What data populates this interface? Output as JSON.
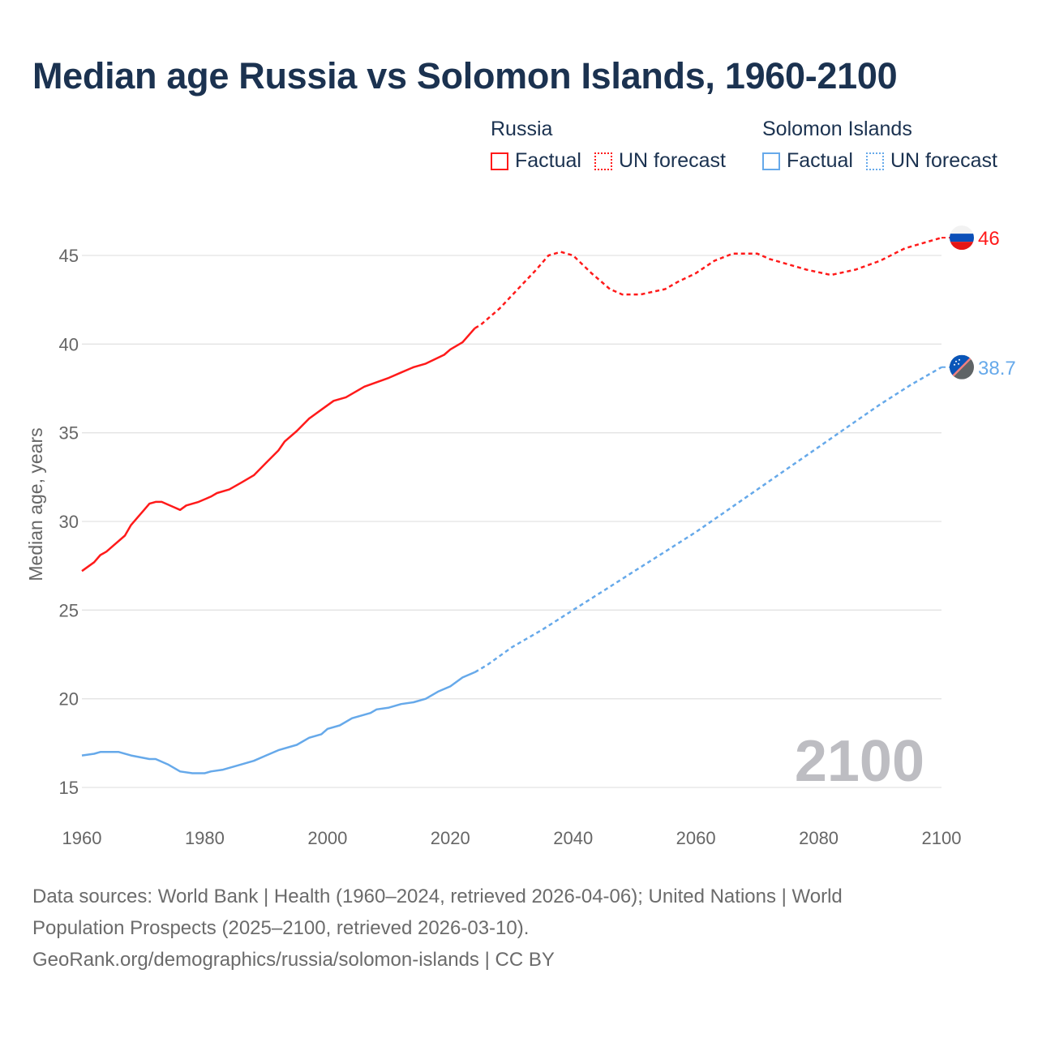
{
  "title": "Median age Russia vs Solomon Islands, 1960-2100",
  "legend": {
    "groups": [
      {
        "name": "Russia",
        "color": "#ff1a1a",
        "factual_label": "Factual",
        "forecast_label": "UN forecast"
      },
      {
        "name": "Solomon Islands",
        "color": "#66a9ea",
        "factual_label": "Factual",
        "forecast_label": "UN forecast"
      }
    ]
  },
  "year_watermark": "2100",
  "footer": {
    "line1": "Data sources: World Bank | Health (1960–2024, retrieved 2026-04-06); United Nations | World",
    "line2": "Population Prospects (2025–2100, retrieved 2026-03-10).",
    "line3": "GeoRank.org/demographics/russia/solomon-islands | CC BY"
  },
  "chart_data": {
    "type": "line",
    "title": "Median age Russia vs Solomon Islands, 1960-2100",
    "xlabel": "",
    "ylabel": "Median age, years",
    "xlim": [
      1960,
      2100
    ],
    "ylim": [
      15,
      46
    ],
    "xticks": [
      1960,
      1980,
      2000,
      2020,
      2040,
      2060,
      2080,
      2100
    ],
    "yticks": [
      15,
      20,
      25,
      30,
      35,
      40,
      45
    ],
    "grid": true,
    "legend_position": "top-right",
    "series": [
      {
        "name": "Russia",
        "color": "#ff1a1a",
        "end_label": "46",
        "flag": "russia",
        "factual": [
          [
            1960,
            27.2
          ],
          [
            1962,
            27.7
          ],
          [
            1963,
            28.1
          ],
          [
            1964,
            28.3
          ],
          [
            1965,
            28.6
          ],
          [
            1967,
            29.2
          ],
          [
            1968,
            29.8
          ],
          [
            1970,
            30.6
          ],
          [
            1971,
            31.0
          ],
          [
            1972,
            31.1
          ],
          [
            1973,
            31.1
          ],
          [
            1975,
            30.8
          ],
          [
            1976,
            30.65
          ],
          [
            1977,
            30.9
          ],
          [
            1979,
            31.1
          ],
          [
            1981,
            31.4
          ],
          [
            1982,
            31.6
          ],
          [
            1984,
            31.8
          ],
          [
            1986,
            32.2
          ],
          [
            1988,
            32.6
          ],
          [
            1990,
            33.3
          ],
          [
            1992,
            34.0
          ],
          [
            1993,
            34.5
          ],
          [
            1995,
            35.1
          ],
          [
            1997,
            35.8
          ],
          [
            1999,
            36.3
          ],
          [
            2001,
            36.8
          ],
          [
            2003,
            37.0
          ],
          [
            2006,
            37.6
          ],
          [
            2010,
            38.1
          ],
          [
            2012,
            38.4
          ],
          [
            2014,
            38.7
          ],
          [
            2016,
            38.9
          ],
          [
            2019,
            39.4
          ],
          [
            2020,
            39.7
          ],
          [
            2022,
            40.1
          ],
          [
            2024,
            40.9
          ]
        ],
        "forecast": [
          [
            2024,
            40.9
          ],
          [
            2025,
            41.1
          ],
          [
            2028,
            42.0
          ],
          [
            2031,
            43.1
          ],
          [
            2034,
            44.2
          ],
          [
            2036,
            45.0
          ],
          [
            2038,
            45.2
          ],
          [
            2040,
            45.0
          ],
          [
            2043,
            44.0
          ],
          [
            2046,
            43.1
          ],
          [
            2048,
            42.8
          ],
          [
            2051,
            42.8
          ],
          [
            2055,
            43.1
          ],
          [
            2057,
            43.5
          ],
          [
            2060,
            44.0
          ],
          [
            2063,
            44.7
          ],
          [
            2066,
            45.1
          ],
          [
            2070,
            45.1
          ],
          [
            2072,
            44.8
          ],
          [
            2076,
            44.4
          ],
          [
            2078,
            44.2
          ],
          [
            2082,
            43.9
          ],
          [
            2086,
            44.2
          ],
          [
            2090,
            44.7
          ],
          [
            2094,
            45.4
          ],
          [
            2098,
            45.8
          ],
          [
            2100,
            46.0
          ]
        ]
      },
      {
        "name": "Solomon Islands",
        "color": "#66a9ea",
        "end_label": "38.7",
        "flag": "solomon-islands",
        "factual": [
          [
            1960,
            16.8
          ],
          [
            1962,
            16.9
          ],
          [
            1963,
            17.0
          ],
          [
            1966,
            17.0
          ],
          [
            1968,
            16.8
          ],
          [
            1971,
            16.6
          ],
          [
            1972,
            16.6
          ],
          [
            1974,
            16.3
          ],
          [
            1976,
            15.9
          ],
          [
            1978,
            15.8
          ],
          [
            1980,
            15.8
          ],
          [
            1981,
            15.9
          ],
          [
            1983,
            16.0
          ],
          [
            1986,
            16.3
          ],
          [
            1988,
            16.5
          ],
          [
            1990,
            16.8
          ],
          [
            1992,
            17.1
          ],
          [
            1995,
            17.4
          ],
          [
            1997,
            17.8
          ],
          [
            1999,
            18.0
          ],
          [
            2000,
            18.3
          ],
          [
            2002,
            18.5
          ],
          [
            2004,
            18.9
          ],
          [
            2007,
            19.2
          ],
          [
            2008,
            19.4
          ],
          [
            2010,
            19.5
          ],
          [
            2012,
            19.7
          ],
          [
            2014,
            19.8
          ],
          [
            2016,
            20.0
          ],
          [
            2018,
            20.4
          ],
          [
            2020,
            20.7
          ],
          [
            2022,
            21.2
          ],
          [
            2024,
            21.5
          ]
        ],
        "forecast": [
          [
            2024,
            21.5
          ],
          [
            2026,
            21.9
          ],
          [
            2030,
            22.9
          ],
          [
            2035,
            23.9
          ],
          [
            2040,
            25.0
          ],
          [
            2045,
            26.1
          ],
          [
            2050,
            27.2
          ],
          [
            2055,
            28.3
          ],
          [
            2060,
            29.4
          ],
          [
            2065,
            30.6
          ],
          [
            2070,
            31.8
          ],
          [
            2075,
            33.0
          ],
          [
            2080,
            34.2
          ],
          [
            2085,
            35.4
          ],
          [
            2090,
            36.6
          ],
          [
            2095,
            37.7
          ],
          [
            2100,
            38.7
          ]
        ]
      }
    ]
  }
}
